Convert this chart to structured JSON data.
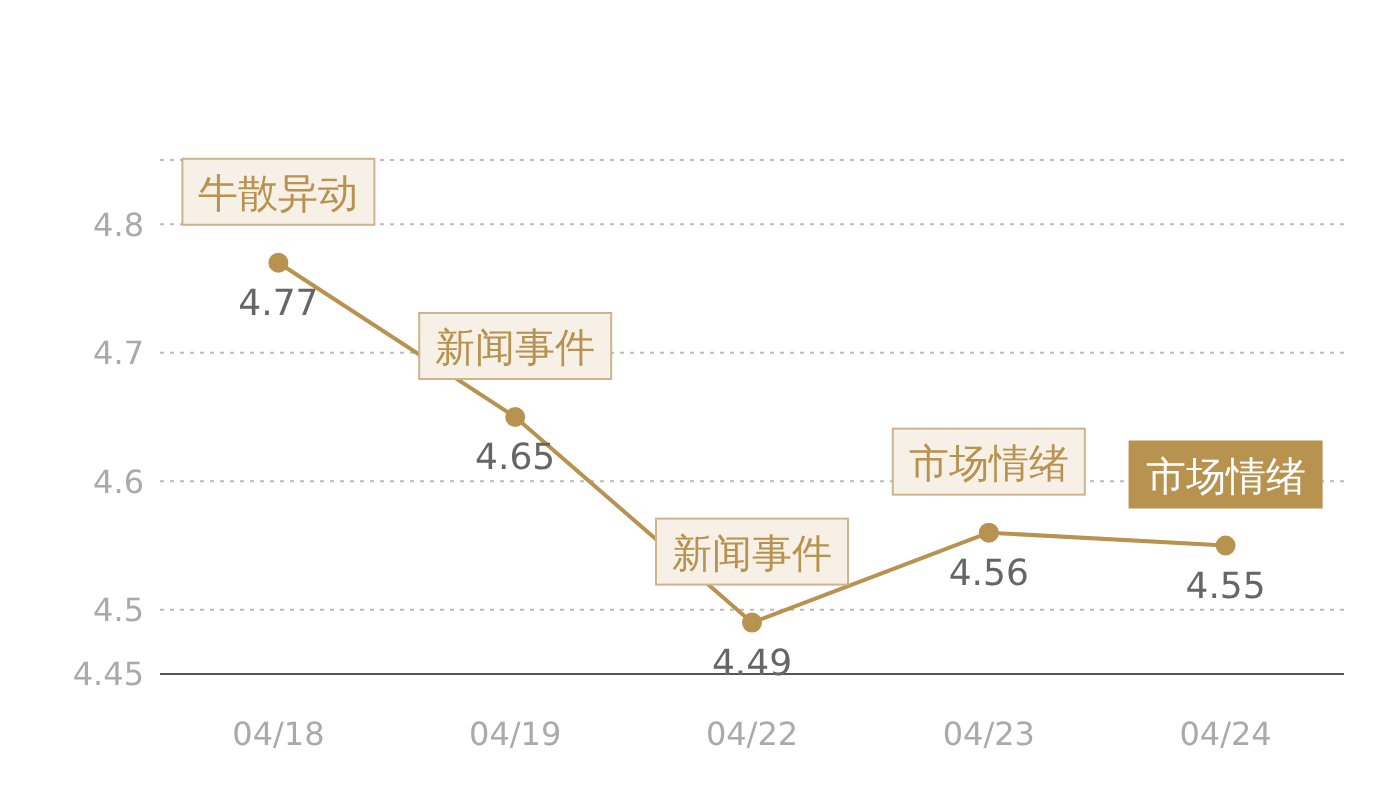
{
  "chart_data": {
    "type": "line",
    "categories": [
      "04/18",
      "04/19",
      "04/22",
      "04/23",
      "04/24"
    ],
    "series": [
      {
        "color": "#b8924f",
        "values": [
          4.77,
          4.65,
          4.49,
          4.56,
          4.55
        ]
      }
    ],
    "ylim": [
      4.45,
      4.85
    ],
    "yticks": [
      4.45,
      4.5,
      4.6,
      4.7,
      4.8
    ],
    "grid": "y",
    "marker": "circle",
    "line_style": "solid",
    "data_labels": true,
    "legend": false,
    "annotations": [
      {
        "text": "牛散异动",
        "x": "04/18",
        "y": 4.77
      },
      {
        "text": "新闻事件",
        "x": "04/19",
        "y": 4.65
      },
      {
        "text": "新闻事件",
        "x": "04/22",
        "y": 4.49
      },
      {
        "text": "市场情绪",
        "x": "04/23",
        "y": 4.56
      },
      {
        "text": "市场情绪",
        "x": "04/24",
        "y": 4.55
      }
    ]
  }
}
